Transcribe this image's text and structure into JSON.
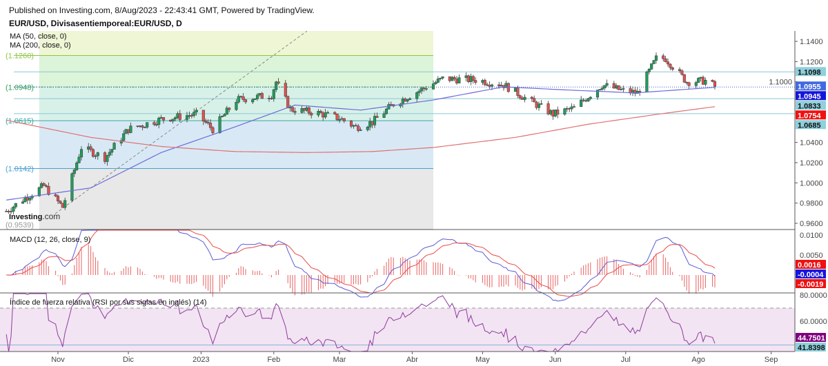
{
  "header": {
    "published": "Published on Investing.com, 8/Aug/2023 - 22:43:41 GMT, Powered by TradingView.",
    "title": "EUR/USD, Divisasentiemporeal:EUR/USD, D"
  },
  "logo": "Investing.com",
  "chart_data": {
    "type": "candlestick",
    "symbol": "EUR/USD",
    "interval": "D",
    "price_axis": {
      "ylim": [
        0.955,
        1.149
      ],
      "ticks": [
        "1.1400",
        "1.1200",
        "1.1000",
        "1.0400",
        "1.0200",
        "1.0000",
        "0.9800",
        "0.9600"
      ]
    },
    "x_ticks": [
      {
        "label": "Nov",
        "date": "2022-11-01"
      },
      {
        "label": "Dic",
        "date": "2022-12-01"
      },
      {
        "label": "2023",
        "date": "2023-01-01"
      },
      {
        "label": "Feb",
        "date": "2023-02-01"
      },
      {
        "label": "Mar",
        "date": "2023-03-01"
      },
      {
        "label": "Abr",
        "date": "2023-04-01"
      },
      {
        "label": "May",
        "date": "2023-05-01"
      },
      {
        "label": "Jun",
        "date": "2023-06-01"
      },
      {
        "label": "Jul",
        "date": "2023-07-01"
      },
      {
        "label": "Ago",
        "date": "2023-08-01"
      },
      {
        "label": "Sep",
        "date": "2023-09-01"
      }
    ],
    "close_keypoints": [
      [
        "2022-10-10",
        0.972
      ],
      [
        "2022-10-18",
        0.985
      ],
      [
        "2022-10-26",
        0.997
      ],
      [
        "2022-11-03",
        0.976
      ],
      [
        "2022-11-11",
        1.035
      ],
      [
        "2022-11-21",
        1.025
      ],
      [
        "2022-12-01",
        1.053
      ],
      [
        "2022-12-15",
        1.063
      ],
      [
        "2022-12-30",
        1.068
      ],
      [
        "2023-01-06",
        1.053
      ],
      [
        "2023-01-16",
        1.082
      ],
      [
        "2023-01-31",
        1.087
      ],
      [
        "2023-02-02",
        1.1
      ],
      [
        "2023-02-08",
        1.073
      ],
      [
        "2023-02-20",
        1.069
      ],
      [
        "2023-03-01",
        1.064
      ],
      [
        "2023-03-08",
        1.055
      ],
      [
        "2023-03-15",
        1.06
      ],
      [
        "2023-03-24",
        1.078
      ],
      [
        "2023-04-03",
        1.09
      ],
      [
        "2023-04-14",
        1.103
      ],
      [
        "2023-04-28",
        1.102
      ],
      [
        "2023-05-10",
        1.097
      ],
      [
        "2023-05-22",
        1.08
      ],
      [
        "2023-05-31",
        1.068
      ],
      [
        "2023-06-09",
        1.074
      ],
      [
        "2023-06-21",
        1.097
      ],
      [
        "2023-06-30",
        1.091
      ],
      [
        "2023-07-06",
        1.089
      ],
      [
        "2023-07-14",
        1.123
      ],
      [
        "2023-07-18",
        1.123
      ],
      [
        "2023-07-27",
        1.1
      ],
      [
        "2023-08-04",
        1.101
      ],
      [
        "2023-08-08",
        1.0955
      ]
    ],
    "indicators": [
      {
        "name": "MA (50, close, 0)",
        "color": "#6b6bdc",
        "last": "1.0945",
        "keypoints": [
          [
            "2022-10-10",
            0.983
          ],
          [
            "2022-11-15",
            0.995
          ],
          [
            "2022-12-15",
            1.03
          ],
          [
            "2023-01-15",
            1.055
          ],
          [
            "2023-02-10",
            1.077
          ],
          [
            "2023-03-10",
            1.072
          ],
          [
            "2023-04-10",
            1.082
          ],
          [
            "2023-05-10",
            1.095
          ],
          [
            "2023-06-05",
            1.092
          ],
          [
            "2023-07-05",
            1.089
          ],
          [
            "2023-08-08",
            1.0945
          ]
        ]
      },
      {
        "name": "MA (200, close, 0)",
        "color": "#e07070",
        "last": "1.0754",
        "keypoints": [
          [
            "2022-10-10",
            1.062
          ],
          [
            "2022-11-15",
            1.045
          ],
          [
            "2022-12-15",
            1.036
          ],
          [
            "2023-01-15",
            1.031
          ],
          [
            "2023-02-15",
            1.03
          ],
          [
            "2023-03-15",
            1.031
          ],
          [
            "2023-04-10",
            1.035
          ],
          [
            "2023-05-15",
            1.045
          ],
          [
            "2023-06-15",
            1.058
          ],
          [
            "2023-07-15",
            1.068
          ],
          [
            "2023-08-08",
            1.0754
          ]
        ]
      }
    ],
    "fibonacci": {
      "levels": [
        "1.1260",
        "1.0948",
        "1.0615",
        "1.0142",
        "0.9539"
      ],
      "extra_lines": [
        {
          "value": "1.1098",
          "dotted": false
        },
        {
          "value": "1.0833",
          "dotted": false
        },
        {
          "value": "1.0685",
          "dotted": false
        }
      ],
      "from_date": "2022-10-24",
      "to_date": "2023-04-10"
    },
    "last_price": "1.0955",
    "macd": {
      "name": "MACD (12, 26, close, 9)",
      "ticks": [
        "0.0100",
        "0.0050"
      ],
      "values": {
        "histogram": "0.0016",
        "macd": "-0.0004",
        "signal": "-0.0019"
      }
    },
    "rsi": {
      "name": "Índice de fuerza relativa (RSI por sus siglas en inglés) (14)",
      "ticks": [
        "80.0000",
        "60.0000"
      ],
      "values": {
        "rsi": "44.7501",
        "ma": "41.8398"
      },
      "upper_band": 70
    }
  },
  "colors": {
    "up": "#1f9e5b",
    "down": "#e05252",
    "macd": "#5a5ad8",
    "signal": "#e84a4a",
    "rsi": "#8e3a9e",
    "price_badge": "#4169e1"
  }
}
